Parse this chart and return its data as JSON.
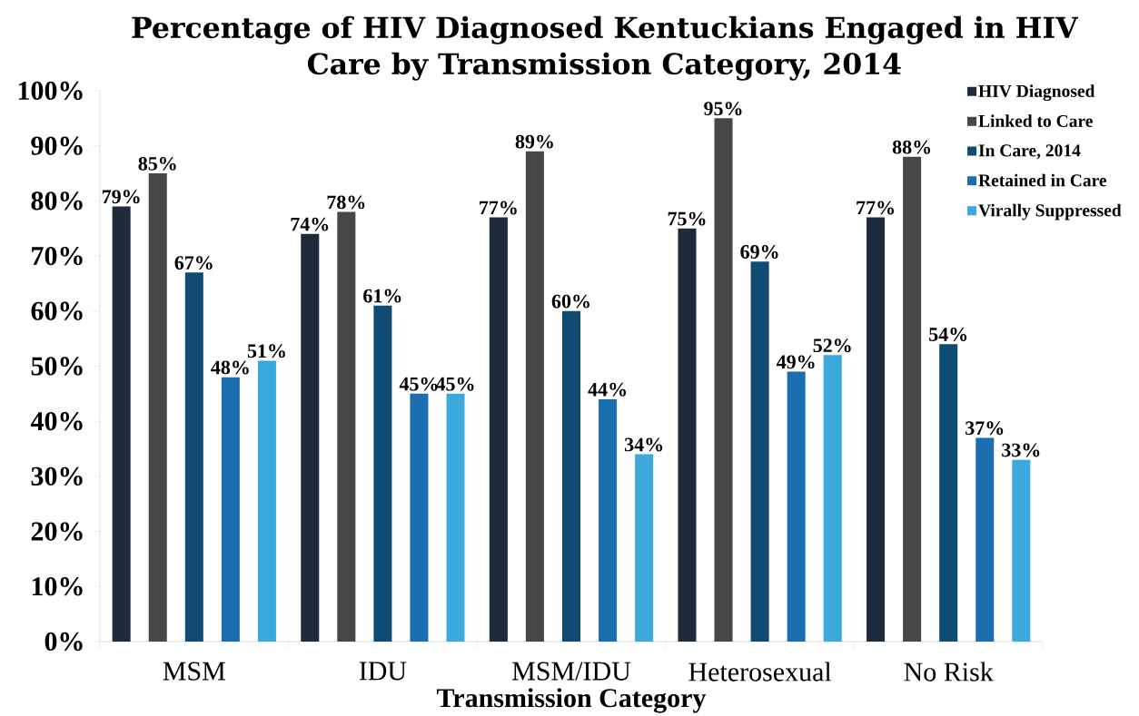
{
  "chart_data": {
    "type": "bar",
    "title": "Percentage of HIV Diagnosed Kentuckians Engaged in HIV Care by Transmission Category, 2014",
    "xlabel": "Transmission Category",
    "categories": [
      "MSM",
      "IDU",
      "MSM/IDU",
      "Heterosexual",
      "No Risk"
    ],
    "series": [
      {
        "name": "HIV Diagnosed",
        "color": "#1e2b3a",
        "values": [
          79,
          74,
          77,
          75,
          77
        ],
        "value_labels": [
          "79%",
          "74%",
          "77%",
          "75%",
          "77%"
        ]
      },
      {
        "name": "Linked to Care",
        "color": "#474747",
        "values": [
          85,
          78,
          89,
          95,
          88
        ],
        "value_labels": [
          "85%",
          "78%",
          "89%",
          "95%",
          "88%"
        ]
      },
      {
        "name": "In Care, 2014",
        "color": "#0f4b72",
        "values": [
          67,
          61,
          60,
          69,
          54
        ],
        "value_labels": [
          "67%",
          "61%",
          "60%",
          "69%",
          "54%"
        ]
      },
      {
        "name": "Retained in Care",
        "color": "#1b6eb0",
        "values": [
          48,
          45,
          44,
          49,
          37
        ],
        "value_labels": [
          "48%",
          "45%",
          "44%",
          "49%",
          "37%"
        ]
      },
      {
        "name": "Virally Suppressed",
        "color": "#3ba9dc",
        "values": [
          51,
          45,
          34,
          52,
          33
        ],
        "value_labels": [
          "51%",
          "45%",
          "34%",
          "52%",
          "33%"
        ]
      }
    ],
    "ylim": [
      0,
      100
    ],
    "yticks": [
      {
        "value": 0,
        "label": "0%"
      },
      {
        "value": 10,
        "label": "10%"
      },
      {
        "value": 20,
        "label": "20%"
      },
      {
        "value": 30,
        "label": "30%"
      },
      {
        "value": 40,
        "label": "40%"
      },
      {
        "value": 50,
        "label": "50%"
      },
      {
        "value": 60,
        "label": "60%"
      },
      {
        "value": 70,
        "label": "70%"
      },
      {
        "value": 80,
        "label": "80%"
      },
      {
        "value": 90,
        "label": "90%"
      },
      {
        "value": 100,
        "label": "100%"
      }
    ],
    "legend": "top right"
  }
}
